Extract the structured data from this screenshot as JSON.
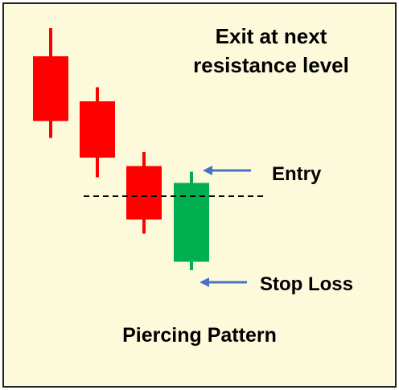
{
  "title": {
    "line1": "Exit at next",
    "line2": "resistance level"
  },
  "labels": {
    "entry": "Entry",
    "stop_loss": "Stop Loss",
    "pattern_name": "Piercing Pattern"
  },
  "colors": {
    "background": "#fdf9db",
    "bearish": "#ff0000",
    "bullish": "#00b050",
    "arrow": "#4a72c4",
    "dashed_line": "#000000",
    "border": "#222222"
  },
  "candles": [
    {
      "type": "bearish",
      "high": 100,
      "open": 90,
      "close": 67,
      "low": 61
    },
    {
      "type": "bearish",
      "high": 79,
      "open": 74,
      "close": 54,
      "low": 47
    },
    {
      "type": "bearish",
      "high": 56,
      "open": 51,
      "close": 32,
      "low": 27
    },
    {
      "type": "bullish",
      "high": 49,
      "open": 17,
      "close": 45,
      "low": 14
    }
  ]
}
